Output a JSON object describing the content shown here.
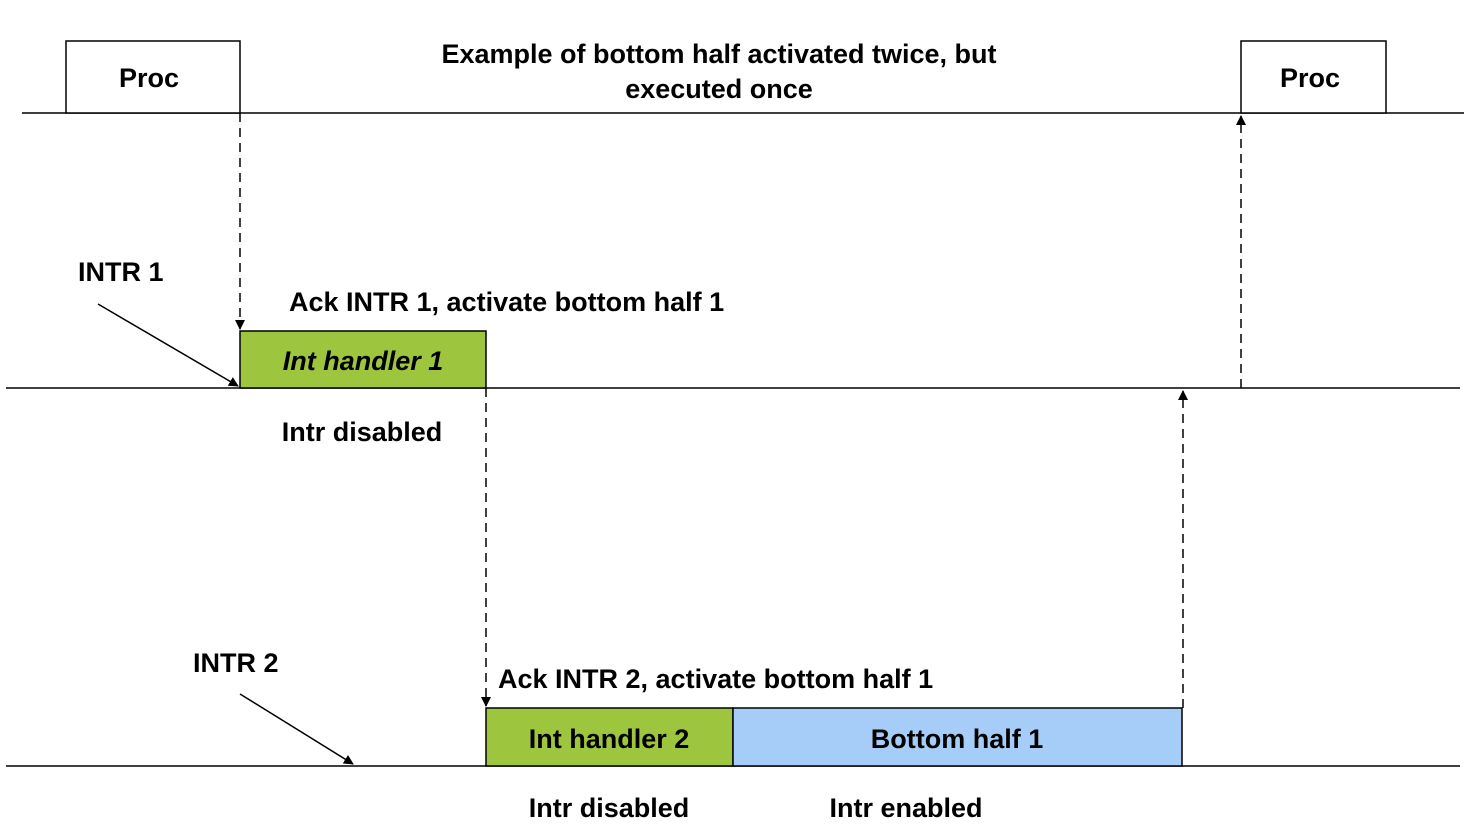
{
  "title": {
    "line1": "Example of bottom half activated twice, but",
    "line2": "executed once"
  },
  "process": {
    "left_label": "Proc",
    "right_label": "Proc"
  },
  "interrupt_1": {
    "signal_label": "INTR 1",
    "action_label": "Ack INTR 1, activate bottom half 1",
    "handler_label": "Int handler 1",
    "state_label": "Intr disabled"
  },
  "interrupt_2": {
    "signal_label": "INTR 2",
    "action_label": "Ack INTR 2, activate bottom half 1",
    "handler_label": "Int handler 2",
    "handler_state_label": "Intr disabled",
    "bottom_half_label": "Bottom half 1",
    "bottom_half_state_label": "Intr enabled"
  },
  "colors": {
    "handler_fill": "#9dc53d",
    "bottom_half_fill": "#a6cdf7",
    "line": "#000000"
  }
}
